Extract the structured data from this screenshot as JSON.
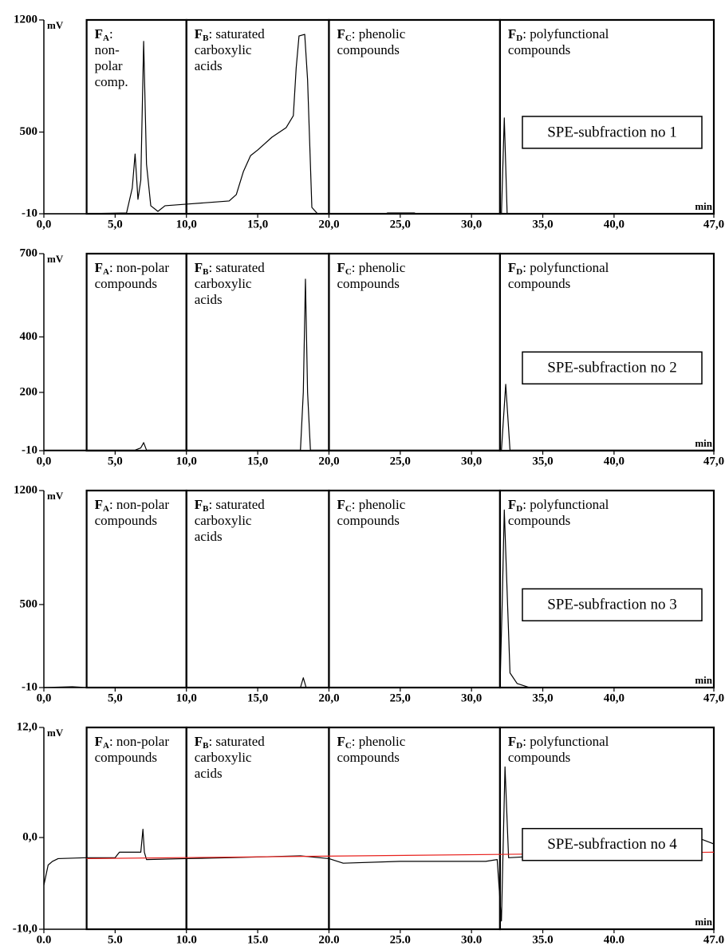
{
  "chart_data": [
    {
      "type": "line",
      "y_unit": "mV",
      "x_unit": "min",
      "xlim": [
        0,
        47
      ],
      "ylim": [
        -10,
        1200
      ],
      "xticks": [
        {
          "value": 0,
          "label": "0,0"
        },
        {
          "value": 5,
          "label": "5,0"
        },
        {
          "value": 10,
          "label": "10,0"
        },
        {
          "value": 15,
          "label": "15,0"
        },
        {
          "value": 20,
          "label": "20,0"
        },
        {
          "value": 25,
          "label": "25,0"
        },
        {
          "value": 30,
          "label": "30,0"
        },
        {
          "value": 35,
          "label": "35,0"
        },
        {
          "value": 40,
          "label": "40,0"
        },
        {
          "value": 47,
          "label": "47,0"
        }
      ],
      "yticks": [
        -10,
        500,
        1200
      ],
      "fractions": [
        {
          "symbol": "F",
          "subscript": "A",
          "lines": [
            ":",
            "non-",
            "polar",
            "comp."
          ],
          "start": 3,
          "end": 10
        },
        {
          "symbol": "F",
          "subscript": "B",
          "lines": [
            ": saturated",
            "carboxylic",
            "acids"
          ],
          "start": 10,
          "end": 20
        },
        {
          "symbol": "F",
          "subscript": "C",
          "lines": [
            ": phenolic",
            "compounds"
          ],
          "start": 20,
          "end": 32
        },
        {
          "symbol": "F",
          "subscript": "D",
          "lines": [
            ": polyfunctional",
            "compounds"
          ],
          "start": 32,
          "end": 47
        }
      ],
      "label": "SPE-subfraction no 1",
      "series": [
        {
          "color": "#000000",
          "x": [
            0,
            3,
            5.8,
            6.2,
            6.4,
            6.6,
            6.8,
            7.0,
            7.2,
            7.5,
            8.0,
            8.5,
            10,
            13,
            13.5,
            14,
            14.5,
            15,
            15.5,
            16,
            17,
            17.5,
            17.7,
            17.9,
            18.3,
            18.5,
            18.8,
            19.2,
            24,
            24.1,
            26,
            26.1,
            32.1,
            32.3,
            32.5,
            47
          ],
          "values": [
            -10,
            -10,
            -5,
            150,
            363,
            80,
            200,
            1066,
            300,
            40,
            5,
            40,
            50,
            70,
            110,
            254,
            353,
            388,
            428,
            468,
            528,
            602,
            900,
            1100,
            1110,
            827,
            30,
            -10,
            -10,
            -5,
            -5,
            -10,
            -10,
            588,
            -10,
            -10
          ]
        }
      ]
    },
    {
      "type": "line",
      "y_unit": "mV",
      "x_unit": "min",
      "xlim": [
        0,
        47
      ],
      "ylim": [
        -10,
        700
      ],
      "xticks": [
        {
          "value": 0,
          "label": "0,0"
        },
        {
          "value": 5,
          "label": "5,0"
        },
        {
          "value": 10,
          "label": "10,0"
        },
        {
          "value": 15,
          "label": "15,0"
        },
        {
          "value": 20,
          "label": "20,0"
        },
        {
          "value": 25,
          "label": "25,0"
        },
        {
          "value": 30,
          "label": "30,0"
        },
        {
          "value": 35,
          "label": "35,0"
        },
        {
          "value": 40,
          "label": "40,0"
        },
        {
          "value": 47,
          "label": "47,0"
        }
      ],
      "yticks": [
        -10,
        200,
        400,
        700
      ],
      "fractions": [
        {
          "symbol": "F",
          "subscript": "A",
          "lines": [
            ": non-polar",
            "compounds"
          ],
          "start": 3,
          "end": 10
        },
        {
          "symbol": "F",
          "subscript": "B",
          "lines": [
            ": saturated",
            "carboxylic",
            "acids"
          ],
          "start": 10,
          "end": 20
        },
        {
          "symbol": "F",
          "subscript": "C",
          "lines": [
            ": phenolic",
            "compounds"
          ],
          "start": 20,
          "end": 32
        },
        {
          "symbol": "F",
          "subscript": "D",
          "lines": [
            ": polyfunctional",
            "compounds"
          ],
          "start": 32,
          "end": 47
        }
      ],
      "label": "SPE-subfraction no 2",
      "series": [
        {
          "color": "#000000",
          "x": [
            0,
            6.4,
            6.8,
            7.0,
            7.2,
            18.0,
            18.2,
            18.35,
            18.5,
            18.7,
            32.1,
            32.4,
            32.7,
            47
          ],
          "values": [
            -8,
            -8,
            0,
            19,
            -8,
            -8,
            200,
            608,
            200,
            -8,
            -8,
            229,
            -8,
            -8
          ]
        }
      ]
    },
    {
      "type": "line",
      "y_unit": "mV",
      "x_unit": "min",
      "xlim": [
        0,
        47
      ],
      "ylim": [
        -10,
        1200
      ],
      "xticks": [
        {
          "value": 0,
          "label": "0,0"
        },
        {
          "value": 5,
          "label": "5,0"
        },
        {
          "value": 10,
          "label": "10,0"
        },
        {
          "value": 15,
          "label": "15,0"
        },
        {
          "value": 20,
          "label": "20,0"
        },
        {
          "value": 25,
          "label": "25,0"
        },
        {
          "value": 30,
          "label": "30,0"
        },
        {
          "value": 35,
          "label": "35,0"
        },
        {
          "value": 40,
          "label": "40,0"
        },
        {
          "value": 47,
          "label": "47,0"
        }
      ],
      "yticks": [
        -10,
        500,
        1200
      ],
      "fractions": [
        {
          "symbol": "F",
          "subscript": "A",
          "lines": [
            ": non-polar",
            "compounds"
          ],
          "start": 3,
          "end": 10
        },
        {
          "symbol": "F",
          "subscript": "B",
          "lines": [
            ": saturated",
            "carboxylic",
            "acids"
          ],
          "start": 10,
          "end": 20
        },
        {
          "symbol": "F",
          "subscript": "C",
          "lines": [
            ": phenolic",
            "compounds"
          ],
          "start": 20,
          "end": 32
        },
        {
          "symbol": "F",
          "subscript": "D",
          "lines": [
            ": polyfunctional",
            "compounds"
          ],
          "start": 32,
          "end": 47
        }
      ],
      "label": "SPE-subfraction no 3",
      "series": [
        {
          "color": "#000000",
          "x": [
            0,
            2,
            3,
            18.0,
            18.2,
            18.4,
            32.0,
            32.15,
            32.3,
            32.45,
            32.7,
            33.2,
            34,
            47
          ],
          "values": [
            -10,
            -5,
            -10,
            -10,
            50,
            -10,
            -10,
            500,
            1081,
            700,
            80,
            15,
            -8,
            -8
          ]
        }
      ]
    },
    {
      "type": "line",
      "y_unit": "mV",
      "x_unit": "min",
      "xlim": [
        0,
        47
      ],
      "ylim": [
        -10,
        12
      ],
      "xticks": [
        {
          "value": 0,
          "label": "0.0"
        },
        {
          "value": 5,
          "label": "5.0"
        },
        {
          "value": 10,
          "label": "10.0"
        },
        {
          "value": 15,
          "label": "15.0"
        },
        {
          "value": 20,
          "label": "20.0"
        },
        {
          "value": 25,
          "label": "25.0"
        },
        {
          "value": 30,
          "label": "30.0"
        },
        {
          "value": 35,
          "label": "35.0"
        },
        {
          "value": 40,
          "label": "40.0"
        },
        {
          "value": 47,
          "label": "47.0"
        }
      ],
      "yticks": [
        {
          "value": -10,
          "label": "-10,0"
        },
        {
          "value": 0,
          "label": "0,0"
        },
        {
          "value": 12,
          "label": "12,0"
        }
      ],
      "fractions": [
        {
          "symbol": "F",
          "subscript": "A",
          "lines": [
            ": non-polar",
            "compounds"
          ],
          "start": 3,
          "end": 10
        },
        {
          "symbol": "F",
          "subscript": "B",
          "lines": [
            ": saturated",
            "carboxylic",
            "acids"
          ],
          "start": 10,
          "end": 20
        },
        {
          "symbol": "F",
          "subscript": "C",
          "lines": [
            ": phenolic",
            "compounds"
          ],
          "start": 20,
          "end": 32
        },
        {
          "symbol": "F",
          "subscript": "D",
          "lines": [
            ": polyfunctional",
            "compounds"
          ],
          "start": 32,
          "end": 47
        }
      ],
      "label": "SPE-subfraction no 4",
      "series": [
        {
          "color": "#000000",
          "x": [
            0,
            0.3,
            0.6,
            1,
            3,
            5,
            5.3,
            6.8,
            6.95,
            7.05,
            7.2,
            10,
            13,
            18,
            20,
            21,
            25,
            31,
            31.8,
            32.1,
            32.35,
            32.6,
            35,
            35.5,
            36,
            38,
            40,
            41,
            42,
            44,
            45,
            46,
            47
          ],
          "values": [
            -5.2,
            -3,
            -2.6,
            -2.3,
            -2.2,
            -2.2,
            -1.6,
            -1.6,
            0.9,
            -1.6,
            -2.4,
            -2.3,
            -2.2,
            -2,
            -2.3,
            -2.8,
            -2.6,
            -2.6,
            -2.4,
            -9.1,
            7.7,
            -2.2,
            -2,
            -1.2,
            -1.7,
            -1.6,
            -1.6,
            -1.6,
            -0.9,
            -0.8,
            0,
            -0.1,
            -0.7
          ]
        },
        {
          "color": "#e8211d",
          "x": [
            3,
            47
          ],
          "values": [
            -2.3,
            -1.6
          ]
        }
      ]
    }
  ]
}
